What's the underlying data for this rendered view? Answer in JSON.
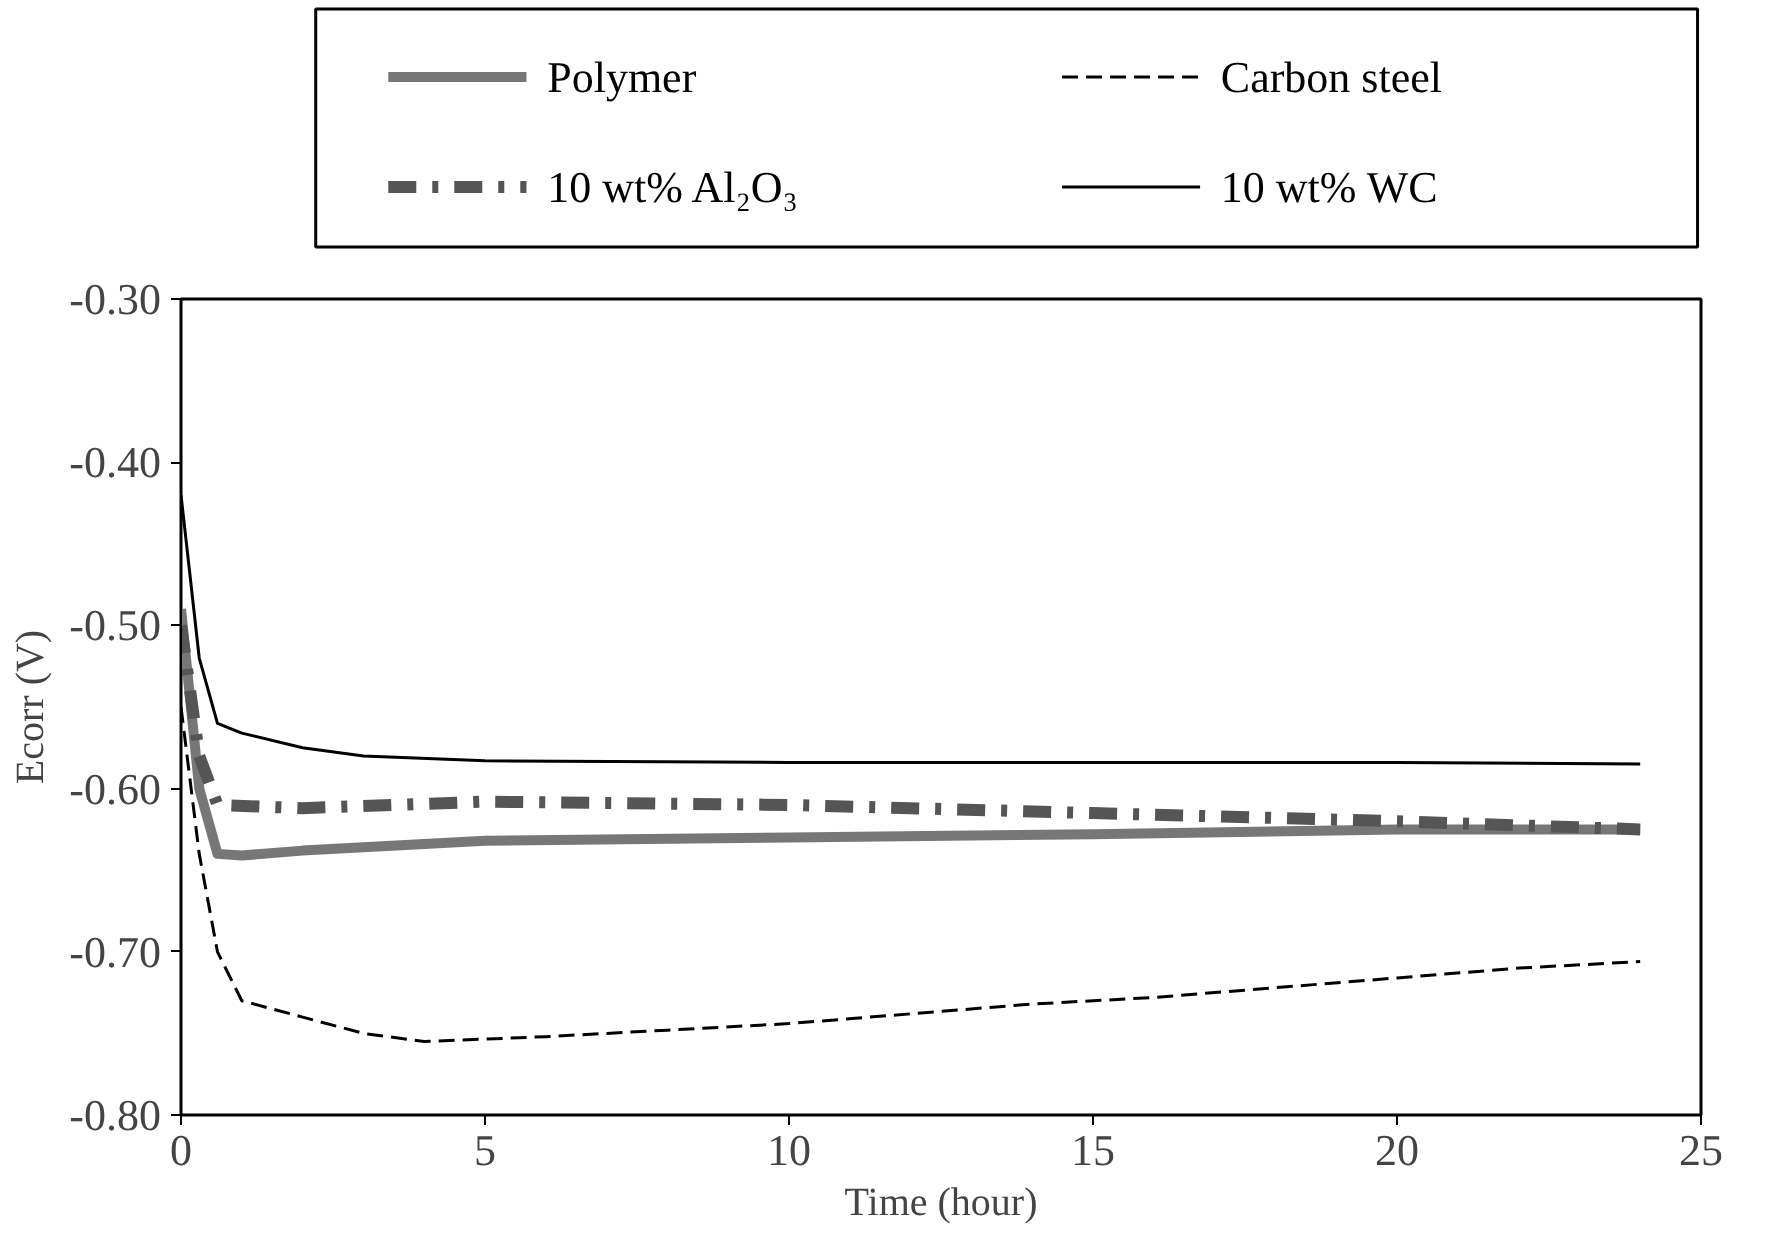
{
  "chart_data": {
    "type": "line",
    "xlabel": "Time (hour)",
    "ylabel": "Ecorr (V)",
    "xlim": [
      0,
      25
    ],
    "xticks": [
      0,
      5,
      10,
      15,
      20,
      25
    ],
    "ylim": [
      -0.8,
      -0.3
    ],
    "yticks": [
      {
        "value": -0.8,
        "label": "-0.80"
      },
      {
        "value": -0.7,
        "label": "-0.70"
      },
      {
        "value": -0.6,
        "label": "-0.60"
      },
      {
        "value": -0.5,
        "label": "-0.50"
      },
      {
        "value": -0.4,
        "label": "-0.40"
      },
      {
        "value": -0.3,
        "label": "-0.30"
      }
    ],
    "grid": false,
    "legend": "top",
    "marker": "none",
    "series": [
      {
        "name": "Polymer",
        "color": "#777777",
        "line_style": "solid",
        "x": [
          0,
          0.3,
          0.6,
          1,
          2,
          5,
          10,
          15,
          20,
          24
        ],
        "values": [
          -0.49,
          -0.6,
          -0.64,
          -0.641,
          -0.638,
          -0.632,
          -0.63,
          -0.628,
          -0.625,
          -0.625
        ]
      },
      {
        "name": "Carbon steel",
        "color": "#000000",
        "line_style": "dashed",
        "x": [
          0,
          0.3,
          0.6,
          1,
          2,
          3,
          4,
          6,
          8,
          10,
          12,
          14,
          16,
          18,
          20,
          22,
          24
        ],
        "values": [
          -0.55,
          -0.64,
          -0.7,
          -0.73,
          -0.74,
          -0.75,
          -0.755,
          -0.752,
          -0.748,
          -0.744,
          -0.738,
          -0.732,
          -0.728,
          -0.722,
          -0.716,
          -0.71,
          -0.706
        ]
      },
      {
        "name": "10 wt% Al₂O₃",
        "color": "#555555",
        "line_style": "dashdot",
        "x": [
          0,
          0.3,
          0.6,
          2,
          5,
          10,
          15,
          20,
          24
        ],
        "values": [
          -0.5,
          -0.58,
          -0.61,
          -0.612,
          -0.608,
          -0.61,
          -0.615,
          -0.62,
          -0.625
        ]
      },
      {
        "name": "10 wt% WC",
        "color": "#000000",
        "line_style": "solid",
        "x": [
          0,
          0.3,
          0.6,
          1,
          2,
          3,
          5,
          10,
          15,
          20,
          24
        ],
        "values": [
          -0.42,
          -0.52,
          -0.56,
          -0.566,
          -0.575,
          -0.58,
          -0.583,
          -0.584,
          -0.584,
          -0.584,
          -0.585
        ]
      }
    ]
  }
}
